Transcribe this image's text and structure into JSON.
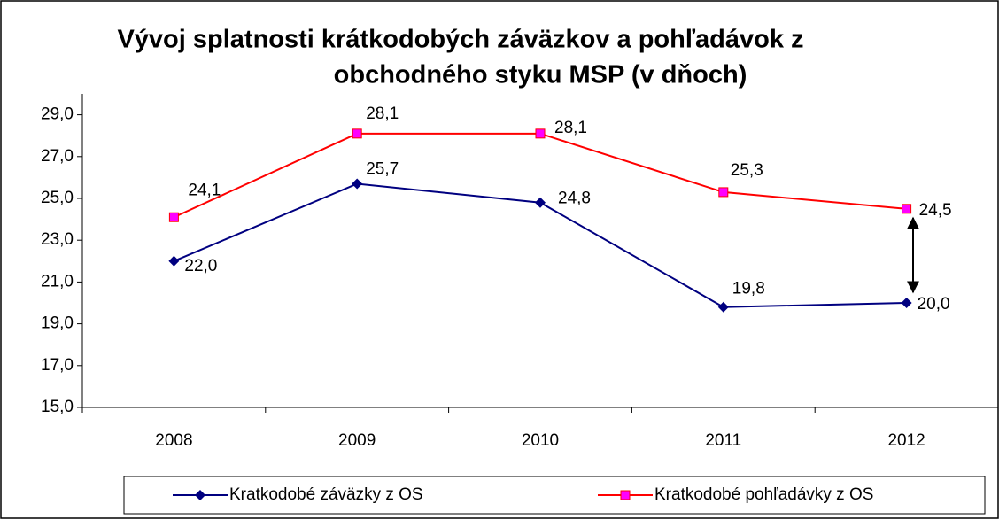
{
  "chart_data": {
    "type": "line",
    "title": [
      "Vývoj splatnosti krátkodobých záväzkov a pohľadávok z",
      "obchodného styku MSP (v dňoch)"
    ],
    "categories": [
      "2008",
      "2009",
      "2010",
      "2011",
      "2012"
    ],
    "series": [
      {
        "name": "Kratkodobé záväzky z OS",
        "color": "#000080",
        "marker": "diamond",
        "values": [
          22.0,
          25.7,
          24.8,
          19.8,
          20.0
        ],
        "value_labels": [
          "22,0",
          "25,7",
          "24,8",
          "19,8",
          "20,0"
        ]
      },
      {
        "name": "Kratkodobé pohľadávky z OS",
        "color": "#ff0000",
        "marker_fill": "#ff00ff",
        "marker": "square",
        "values": [
          24.1,
          28.1,
          28.1,
          25.3,
          24.5
        ],
        "value_labels": [
          "24,1",
          "28,1",
          "28,1",
          "25,3",
          "24,5"
        ]
      }
    ],
    "ylim": [
      15,
      30
    ],
    "yticks": [
      {
        "value": 15,
        "label": "15,0"
      },
      {
        "value": 17,
        "label": "17,0"
      },
      {
        "value": 19,
        "label": "19,0"
      },
      {
        "value": 21,
        "label": "21,0"
      },
      {
        "value": 23,
        "label": "23,0"
      },
      {
        "value": 25,
        "label": "25,0"
      },
      {
        "value": 27,
        "label": "27,0"
      },
      {
        "value": 29,
        "label": "29,0"
      }
    ],
    "legend": "bottom"
  }
}
